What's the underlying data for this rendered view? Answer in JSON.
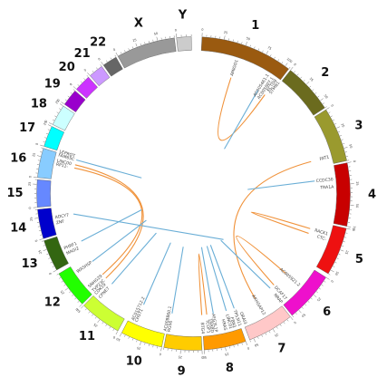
{
  "chromosomes": [
    {
      "name": "1",
      "color": "#9a5a10"
    },
    {
      "name": "2",
      "color": "#6b6b1e"
    },
    {
      "name": "3",
      "color": "#9a9a2e"
    },
    {
      "name": "4",
      "color": "#c80000"
    },
    {
      "name": "5",
      "color": "#ee1111"
    },
    {
      "name": "6",
      "color": "#ee10cc"
    },
    {
      "name": "7",
      "color": "#ffc8c8"
    },
    {
      "name": "8",
      "color": "#ff9a00"
    },
    {
      "name": "9",
      "color": "#ffcc00"
    },
    {
      "name": "10",
      "color": "#ffff00"
    },
    {
      "name": "11",
      "color": "#ccff33"
    },
    {
      "name": "12",
      "color": "#22ff00"
    },
    {
      "name": "13",
      "color": "#336611"
    },
    {
      "name": "14",
      "color": "#0000cc"
    },
    {
      "name": "15",
      "color": "#6688ff"
    },
    {
      "name": "16",
      "color": "#88ccff"
    },
    {
      "name": "17",
      "color": "#00ffff"
    },
    {
      "name": "18",
      "color": "#ccffff"
    },
    {
      "name": "19",
      "color": "#9900cc"
    },
    {
      "name": "20",
      "color": "#cc33ff"
    },
    {
      "name": "21",
      "color": "#cc99ff"
    },
    {
      "name": "22",
      "color": "#666666"
    },
    {
      "name": "X",
      "color": "#999999"
    },
    {
      "name": "Y",
      "color": "#cccccc"
    }
  ],
  "genes": [
    "RP11-",
    "LINC00",
    "FAM65C",
    "LEPROT",
    "AMIGO1",
    "AC005461.1",
    "AC005807.1",
    "KCTD8",
    "STMN1",
    "FAT1",
    "CCDC30",
    "TRA1A",
    "RACK1",
    "CTC-",
    "AC005921.2",
    "DCAF17",
    "NRAP",
    "ARHGAP12",
    "ORAI3",
    "TP53I11",
    "FBN1",
    "LINC01",
    "HRAS",
    "AFG3L1P",
    "TRABD",
    "TCOF1",
    "BTG4",
    "RGS6",
    "AC008860.1",
    "CHST1",
    "AC015712.2",
    "CPNE7",
    "CDK19",
    "TVP23C",
    "SNHG29",
    "WASHSP",
    "MAGI2",
    "PHRF1",
    "ZNF",
    "ADCY7"
  ],
  "links": [
    {
      "from": "RP11-",
      "to": "SNHG29",
      "type": "orange"
    },
    {
      "from": "LINC00",
      "to": "TVP23C",
      "type": "orange"
    },
    {
      "from": "AMIGO1",
      "to": "KCTD8",
      "type": "orange"
    },
    {
      "from": "FAT1",
      "to": "ARHGAP12",
      "type": "orange"
    },
    {
      "from": "CTC-",
      "to": "RACK1",
      "type": "orange"
    },
    {
      "from": "AC005921.2",
      "to": "DCAF17",
      "type": "orange"
    },
    {
      "from": "TCOF1",
      "to": "BTG4",
      "type": "orange"
    },
    {
      "from": "FAM65C",
      "to": "LEPROT",
      "type": "blue"
    },
    {
      "from": "AC005461.1",
      "to": "STMN1",
      "type": "blue"
    },
    {
      "from": "CCDC30",
      "to": "TRA1A",
      "type": "blue"
    },
    {
      "from": "NRAP",
      "to": "ORAI3",
      "type": "blue"
    },
    {
      "from": "TP53I11",
      "to": "FBN1",
      "type": "blue"
    },
    {
      "from": "LINC01",
      "to": "HRAS",
      "type": "blue"
    },
    {
      "from": "AFG3L1P",
      "to": "TRABD",
      "type": "blue"
    },
    {
      "from": "RGS6",
      "to": "AC008860.1",
      "type": "blue"
    },
    {
      "from": "CHST1",
      "to": "AC015712.2",
      "type": "blue"
    },
    {
      "from": "CPNE7",
      "to": "CDK19",
      "type": "blue"
    },
    {
      "from": "WASHSP",
      "to": "MAGI2",
      "type": "blue"
    },
    {
      "from": "PHRF1",
      "to": "ZNF",
      "type": "blue"
    },
    {
      "from": "ADCY7",
      "to": "AC005807.1",
      "type": "blue"
    }
  ],
  "colors": {
    "orange_link": "#f0923a",
    "blue_link": "#6aaed6",
    "label_color": "#111111"
  },
  "tick_labels": [
    "0",
    "25",
    "50",
    "75",
    "100",
    "125",
    "150",
    "175",
    "200",
    "225"
  ]
}
